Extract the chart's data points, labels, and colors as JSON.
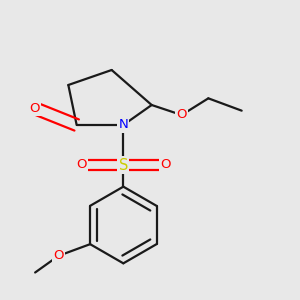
{
  "background_color": "#e8e8e8",
  "atom_colors": {
    "O": "#ff0000",
    "N": "#0000ff",
    "S": "#cccc00",
    "C": "#1a1a1a"
  },
  "fig_width": 3.0,
  "fig_height": 3.0,
  "dpi": 100,
  "lw": 1.6,
  "fontsize": 9.5
}
